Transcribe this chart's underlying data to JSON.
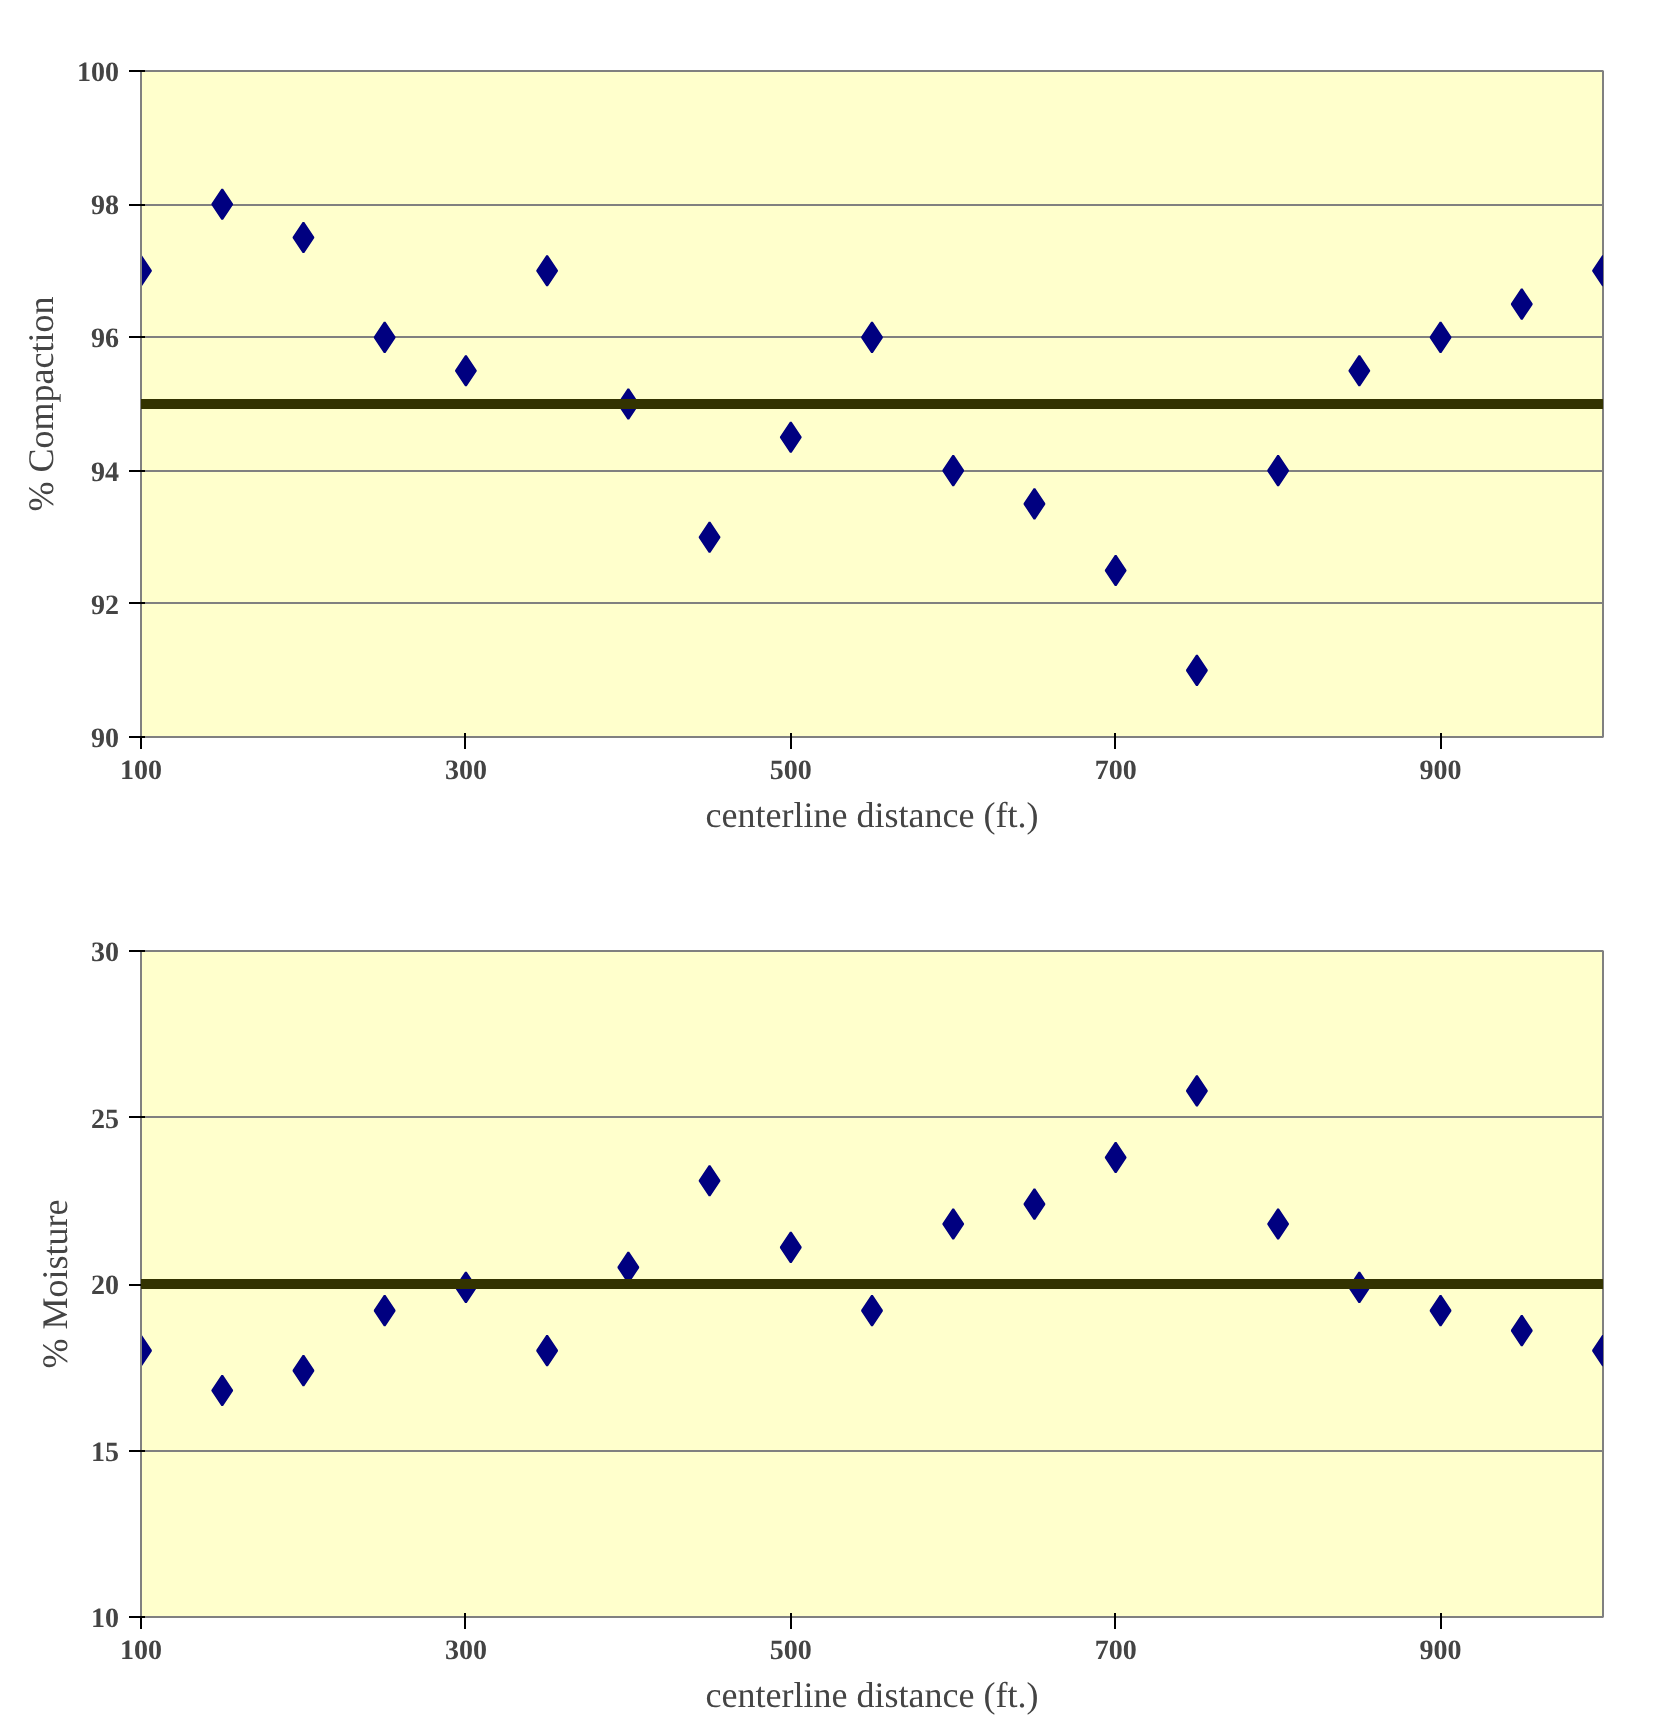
{
  "chart_data": [
    {
      "type": "scatter",
      "xlabel": "centerline distance (ft.)",
      "ylabel": "% Compaction",
      "x": [
        100,
        150,
        200,
        250,
        300,
        350,
        400,
        450,
        500,
        550,
        600,
        650,
        700,
        750,
        800,
        850,
        900,
        950,
        1000
      ],
      "series": [
        {
          "color": "#000080",
          "values": [
            97,
            98,
            97.5,
            96,
            95.5,
            97,
            95,
            93,
            94.5,
            96,
            94,
            93.5,
            92.5,
            91,
            94,
            95.5,
            96,
            96.5,
            97
          ]
        }
      ],
      "xlim": [
        100,
        1000
      ],
      "xticks": [
        100,
        300,
        500,
        700,
        900
      ],
      "ylim": [
        90,
        100
      ],
      "yticks": [
        90,
        92,
        94,
        96,
        98,
        100
      ],
      "grid": "y",
      "marker": "diamond",
      "ref_lines": [
        {
          "axis": "y",
          "value": 95,
          "label": null,
          "color": "#333300"
        }
      ]
    },
    {
      "type": "scatter",
      "xlabel": "centerline distance (ft.)",
      "ylabel": "% Moisture",
      "x": [
        100,
        150,
        200,
        250,
        300,
        350,
        400,
        450,
        500,
        550,
        600,
        650,
        700,
        750,
        800,
        850,
        900,
        950,
        1000
      ],
      "series": [
        {
          "color": "#000080",
          "values": [
            18,
            16.8,
            17.4,
            19.2,
            19.9,
            18,
            20.5,
            23.1,
            21.1,
            19.2,
            21.8,
            22.4,
            23.8,
            25.8,
            21.8,
            19.9,
            19.2,
            18.6,
            18
          ]
        }
      ],
      "xlim": [
        100,
        1000
      ],
      "xticks": [
        100,
        300,
        500,
        700,
        900
      ],
      "ylim": [
        10,
        30
      ],
      "yticks": [
        10,
        15,
        20,
        25,
        30
      ],
      "grid": "y",
      "marker": "diamond",
      "ref_lines": [
        {
          "axis": "y",
          "value": 20,
          "label": null,
          "color": "#333300"
        }
      ]
    }
  ]
}
